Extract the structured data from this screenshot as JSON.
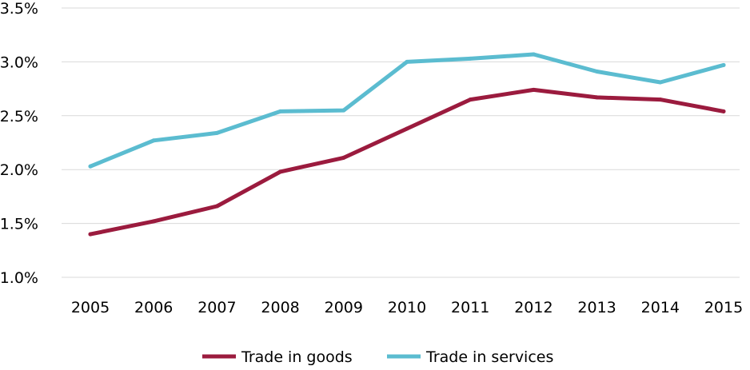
{
  "chart_data": {
    "type": "line",
    "title": "",
    "xlabel": "",
    "ylabel": "",
    "x": [
      "2005",
      "2006",
      "2007",
      "2008",
      "2009",
      "2010",
      "2011",
      "2012",
      "2013",
      "2014",
      "2015"
    ],
    "ylim": [
      1.0,
      3.5
    ],
    "yticks": [
      1.0,
      1.5,
      2.0,
      2.5,
      3.0,
      3.5
    ],
    "ytick_labels": [
      "1.0%",
      "1.5%",
      "2.0%",
      "2.5%",
      "3.0%",
      "3.5%"
    ],
    "grid": true,
    "legend_position": "bottom",
    "series": [
      {
        "name": "Trade in goods",
        "color": "#9b1b3e",
        "values": [
          1.4,
          1.52,
          1.66,
          1.98,
          2.11,
          2.38,
          2.65,
          2.74,
          2.67,
          2.65,
          2.54
        ]
      },
      {
        "name": "Trade in services",
        "color": "#5bbcd0",
        "values": [
          2.03,
          2.27,
          2.34,
          2.54,
          2.55,
          3.0,
          3.03,
          3.07,
          2.91,
          2.81,
          2.97
        ]
      }
    ]
  }
}
